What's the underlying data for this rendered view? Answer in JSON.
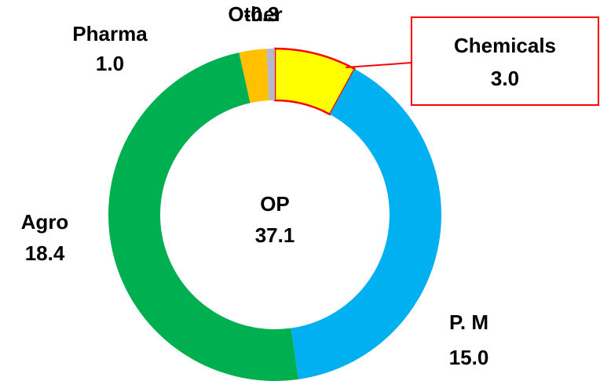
{
  "chart_data": {
    "type": "donut",
    "categories": [
      "Chemicals",
      "P. M",
      "Agro",
      "Pharma",
      "Other"
    ],
    "values": [
      3.0,
      15.0,
      18.4,
      1.0,
      -0.3
    ],
    "value_labels": [
      "3.0",
      "15.0",
      "18.4",
      "1.0",
      "-0.3"
    ],
    "colors": [
      "#ffff00",
      "#00b0f0",
      "#00b050",
      "#ffc000",
      "#b8b8cc"
    ],
    "center_label": "OP",
    "total": 37.1
  }
}
